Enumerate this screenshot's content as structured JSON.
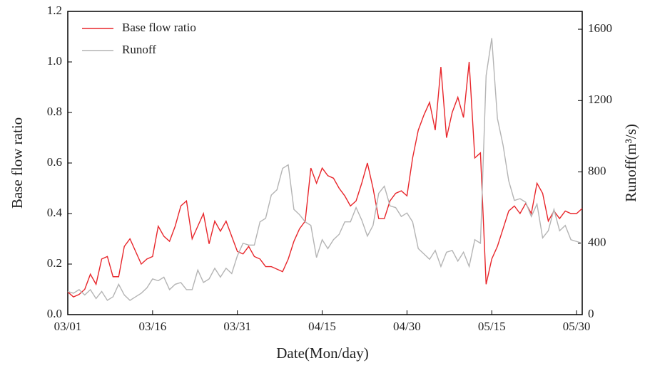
{
  "chart_data": {
    "type": "line",
    "x_label": "Date(Mon/day)",
    "y_label": "Base flow ratio",
    "y2_label": "Runoff(m³/s)",
    "categories": [
      "03/01",
      null,
      null,
      null,
      null,
      null,
      null,
      null,
      null,
      null,
      null,
      null,
      null,
      null,
      null,
      "03/16",
      null,
      null,
      null,
      null,
      null,
      null,
      null,
      null,
      null,
      null,
      null,
      null,
      null,
      null,
      "03/31",
      null,
      null,
      null,
      null,
      null,
      null,
      null,
      null,
      null,
      null,
      null,
      null,
      null,
      null,
      "04/15",
      null,
      null,
      null,
      null,
      null,
      null,
      null,
      null,
      null,
      null,
      null,
      null,
      null,
      null,
      "04/30",
      null,
      null,
      null,
      null,
      null,
      null,
      null,
      null,
      null,
      null,
      null,
      null,
      null,
      null,
      "05/15",
      null,
      null,
      null,
      null,
      null,
      null,
      null,
      null,
      null,
      null,
      null,
      null,
      null,
      null,
      "05/30",
      null
    ],
    "series": [
      {
        "name": "Base flow ratio",
        "color": "#e8262b",
        "axis": "y",
        "values": [
          0.09,
          0.07,
          0.08,
          0.1,
          0.16,
          0.12,
          0.22,
          0.23,
          0.15,
          0.15,
          0.27,
          0.3,
          0.25,
          0.2,
          0.22,
          0.23,
          0.35,
          0.31,
          0.29,
          0.35,
          0.43,
          0.45,
          0.3,
          0.35,
          0.4,
          0.28,
          0.37,
          0.33,
          0.37,
          0.31,
          0.25,
          0.24,
          0.27,
          0.23,
          0.22,
          0.19,
          0.19,
          0.18,
          0.17,
          0.22,
          0.29,
          0.34,
          0.37,
          0.58,
          0.52,
          0.58,
          0.55,
          0.54,
          0.5,
          0.47,
          0.43,
          0.45,
          0.52,
          0.6,
          0.5,
          0.38,
          0.38,
          0.45,
          0.48,
          0.49,
          0.47,
          0.62,
          0.73,
          0.79,
          0.84,
          0.73,
          0.98,
          0.7,
          0.8,
          0.86,
          0.78,
          1.0,
          0.62,
          0.64,
          0.12,
          0.22,
          0.27,
          0.34,
          0.41,
          0.43,
          0.4,
          0.44,
          0.4,
          0.52,
          0.48,
          0.37,
          0.41,
          0.38,
          0.41,
          0.4,
          0.4,
          0.42
        ]
      },
      {
        "name": "Runoff",
        "color": "#b4b4b4",
        "axis": "y2",
        "values": [
          130,
          120,
          140,
          110,
          140,
          90,
          130,
          80,
          100,
          170,
          110,
          80,
          100,
          120,
          150,
          200,
          190,
          210,
          140,
          170,
          180,
          140,
          140,
          250,
          180,
          200,
          260,
          210,
          260,
          230,
          330,
          400,
          390,
          390,
          520,
          540,
          670,
          700,
          820,
          840,
          590,
          560,
          520,
          500,
          320,
          420,
          370,
          420,
          450,
          520,
          520,
          600,
          530,
          440,
          500,
          680,
          720,
          610,
          600,
          550,
          570,
          520,
          370,
          340,
          310,
          360,
          270,
          350,
          360,
          300,
          350,
          270,
          420,
          400,
          1340,
          1550,
          1100,
          950,
          750,
          640,
          650,
          630,
          550,
          620,
          430,
          470,
          590,
          470,
          500,
          420,
          410,
          400
        ]
      }
    ],
    "ylim": [
      0,
      1.2
    ],
    "yticks": [
      {
        "value": 0,
        "label": "0.0"
      },
      0.2,
      0.4,
      0.6,
      0.8,
      {
        "value": 1,
        "label": "1.0"
      },
      1.2
    ],
    "y2lim": [
      0,
      1700
    ],
    "y2ticks": [
      0,
      400,
      800,
      1200,
      1600
    ],
    "legend": "upper-left"
  }
}
